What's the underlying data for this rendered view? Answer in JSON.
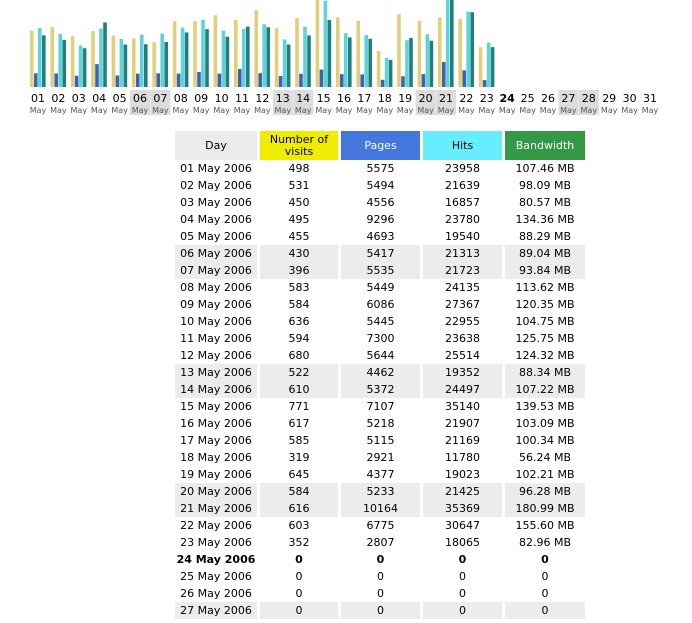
{
  "chart_data": {
    "type": "bar",
    "categories": [
      "01",
      "02",
      "03",
      "04",
      "05",
      "06",
      "07",
      "08",
      "09",
      "10",
      "11",
      "12",
      "13",
      "14",
      "15",
      "16",
      "17",
      "18",
      "19",
      "20",
      "21",
      "22",
      "23",
      "24",
      "25",
      "26",
      "27",
      "28",
      "29",
      "30",
      "31"
    ],
    "month": "May",
    "weekend_days": [
      5,
      6,
      12,
      13,
      19,
      20,
      26,
      27
    ],
    "today": 23,
    "series": [
      {
        "name": "Number of visits",
        "color": "#e2cf7a",
        "ylim": [
          0,
          771
        ],
        "values": [
          498,
          531,
          450,
          495,
          455,
          430,
          396,
          583,
          584,
          636,
          594,
          680,
          522,
          610,
          771,
          617,
          585,
          319,
          645,
          584,
          616,
          603,
          352,
          0,
          0,
          0,
          0,
          0,
          0,
          0,
          0
        ]
      },
      {
        "name": "Pages",
        "color": "#3e62b0",
        "ylim": [
          0,
          35369
        ],
        "values": [
          5575,
          5494,
          4556,
          9296,
          4693,
          5417,
          5535,
          5449,
          6086,
          5445,
          7300,
          5644,
          4462,
          5372,
          7107,
          5218,
          5115,
          2921,
          4377,
          5233,
          10164,
          6775,
          2807,
          0,
          0,
          0,
          0,
          0,
          0,
          0,
          0
        ]
      },
      {
        "name": "Hits",
        "color": "#5fd3da",
        "ylim": [
          0,
          35369
        ],
        "values": [
          23958,
          21639,
          16857,
          23780,
          19540,
          21313,
          21723,
          24135,
          27367,
          22955,
          23638,
          25514,
          19352,
          24497,
          35140,
          21907,
          21169,
          11780,
          19023,
          21425,
          35369,
          30647,
          18065,
          0,
          0,
          0,
          0,
          0,
          0,
          0,
          0
        ]
      },
      {
        "name": "Bandwidth",
        "color": "#1f7f7a",
        "ylim": [
          0,
          180.99
        ],
        "values": [
          107.46,
          98.09,
          80.57,
          134.36,
          88.29,
          89.04,
          93.84,
          113.62,
          120.35,
          104.75,
          125.75,
          124.32,
          88.34,
          107.22,
          139.53,
          103.09,
          100.34,
          56.24,
          102.21,
          96.28,
          180.99,
          155.6,
          82.96,
          0,
          0,
          0,
          0,
          0,
          0,
          0,
          0
        ]
      }
    ]
  },
  "table": {
    "columns": [
      {
        "label": "Day",
        "color": "#ececec",
        "text": "#000"
      },
      {
        "label": "Number of visits",
        "color": "#f0ec00",
        "text": "#000"
      },
      {
        "label": "Pages",
        "color": "#4477dd",
        "text": "#fff"
      },
      {
        "label": "Hits",
        "color": "#66eeff",
        "text": "#000"
      },
      {
        "label": "Bandwidth",
        "color": "#339944",
        "text": "#fff"
      }
    ],
    "shaded_rows": [
      5,
      6,
      12,
      13,
      19,
      20,
      26
    ],
    "bold_row": 23,
    "rows": [
      [
        "01 May 2006",
        "498",
        "5575",
        "23958",
        "107.46 MB"
      ],
      [
        "02 May 2006",
        "531",
        "5494",
        "21639",
        "98.09 MB"
      ],
      [
        "03 May 2006",
        "450",
        "4556",
        "16857",
        "80.57 MB"
      ],
      [
        "04 May 2006",
        "495",
        "9296",
        "23780",
        "134.36 MB"
      ],
      [
        "05 May 2006",
        "455",
        "4693",
        "19540",
        "88.29 MB"
      ],
      [
        "06 May 2006",
        "430",
        "5417",
        "21313",
        "89.04 MB"
      ],
      [
        "07 May 2006",
        "396",
        "5535",
        "21723",
        "93.84 MB"
      ],
      [
        "08 May 2006",
        "583",
        "5449",
        "24135",
        "113.62 MB"
      ],
      [
        "09 May 2006",
        "584",
        "6086",
        "27367",
        "120.35 MB"
      ],
      [
        "10 May 2006",
        "636",
        "5445",
        "22955",
        "104.75 MB"
      ],
      [
        "11 May 2006",
        "594",
        "7300",
        "23638",
        "125.75 MB"
      ],
      [
        "12 May 2006",
        "680",
        "5644",
        "25514",
        "124.32 MB"
      ],
      [
        "13 May 2006",
        "522",
        "4462",
        "19352",
        "88.34 MB"
      ],
      [
        "14 May 2006",
        "610",
        "5372",
        "24497",
        "107.22 MB"
      ],
      [
        "15 May 2006",
        "771",
        "7107",
        "35140",
        "139.53 MB"
      ],
      [
        "16 May 2006",
        "617",
        "5218",
        "21907",
        "103.09 MB"
      ],
      [
        "17 May 2006",
        "585",
        "5115",
        "21169",
        "100.34 MB"
      ],
      [
        "18 May 2006",
        "319",
        "2921",
        "11780",
        "56.24 MB"
      ],
      [
        "19 May 2006",
        "645",
        "4377",
        "19023",
        "102.21 MB"
      ],
      [
        "20 May 2006",
        "584",
        "5233",
        "21425",
        "96.28 MB"
      ],
      [
        "21 May 2006",
        "616",
        "10164",
        "35369",
        "180.99 MB"
      ],
      [
        "22 May 2006",
        "603",
        "6775",
        "30647",
        "155.60 MB"
      ],
      [
        "23 May 2006",
        "352",
        "2807",
        "18065",
        "82.96 MB"
      ],
      [
        "24 May 2006",
        "0",
        "0",
        "0",
        "0"
      ],
      [
        "25 May 2006",
        "0",
        "0",
        "0",
        "0"
      ],
      [
        "26 May 2006",
        "0",
        "0",
        "0",
        "0"
      ],
      [
        "27 May 2006",
        "0",
        "0",
        "0",
        "0"
      ]
    ]
  }
}
